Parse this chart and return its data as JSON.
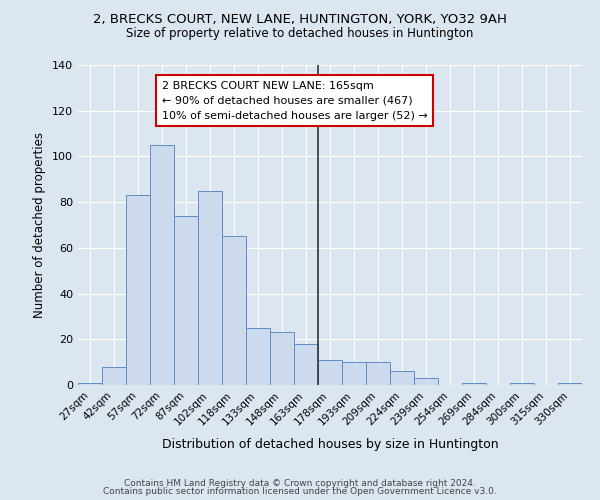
{
  "title": "2, BRECKS COURT, NEW LANE, HUNTINGTON, YORK, YO32 9AH",
  "subtitle": "Size of property relative to detached houses in Huntington",
  "xlabel": "Distribution of detached houses by size in Huntington",
  "ylabel": "Number of detached properties",
  "categories": [
    "27sqm",
    "42sqm",
    "57sqm",
    "72sqm",
    "87sqm",
    "102sqm",
    "118sqm",
    "133sqm",
    "148sqm",
    "163sqm",
    "178sqm",
    "193sqm",
    "209sqm",
    "224sqm",
    "239sqm",
    "254sqm",
    "269sqm",
    "284sqm",
    "300sqm",
    "315sqm",
    "330sqm"
  ],
  "values": [
    1,
    8,
    83,
    105,
    74,
    85,
    65,
    25,
    23,
    18,
    11,
    10,
    10,
    6,
    3,
    0,
    1,
    0,
    1,
    0,
    1
  ],
  "bar_color": "#cdd9ec",
  "bar_edge_color": "#5b8dc8",
  "background_color": "#dce6f1",
  "vline_x": 9.5,
  "vline_color": "#333333",
  "annotation_text": "2 BRECKS COURT NEW LANE: 165sqm\n← 90% of detached houses are smaller (467)\n10% of semi-detached houses are larger (52) →",
  "annotation_box_color": "white",
  "annotation_box_edge": "#cc0000",
  "ylim": [
    0,
    140
  ],
  "yticks": [
    0,
    20,
    40,
    60,
    80,
    100,
    120,
    140
  ],
  "footer_line1": "Contains HM Land Registry data © Crown copyright and database right 2024.",
  "footer_line2": "Contains public sector information licensed under the Open Government Licence v3.0."
}
